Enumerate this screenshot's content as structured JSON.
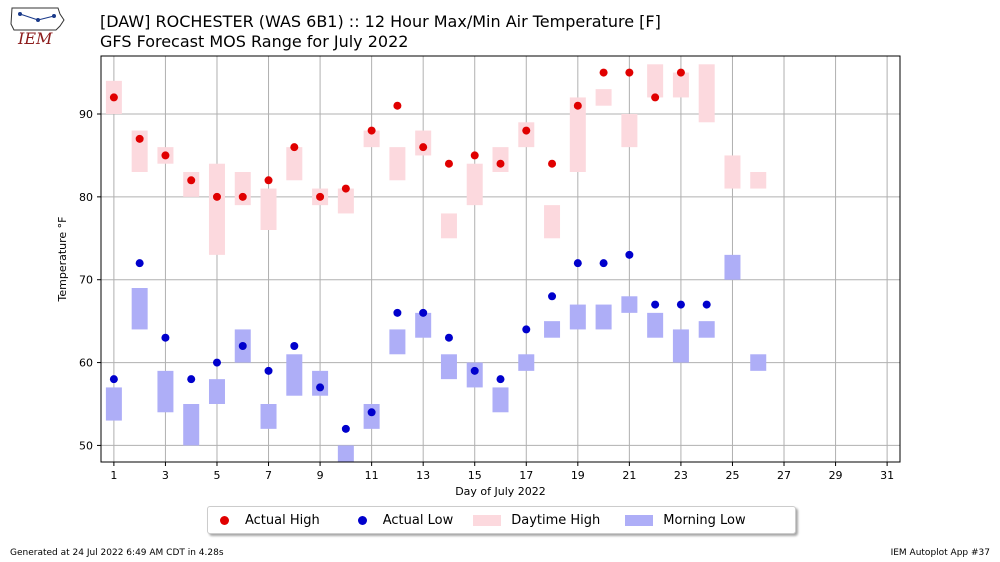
{
  "header": {
    "logo_text": "IEM",
    "title_line1": "[DAW] ROCHESTER (WAS 6B1) :: 12 Hour Max/Min Air Temperature [F]",
    "title_line2": "GFS Forecast MOS Range for July 2022"
  },
  "footer": {
    "generated": "Generated at 24 Jul 2022 6:49 AM CDT in 4.28s",
    "app": "IEM Autoplot App #37"
  },
  "legend": {
    "actual_high": "Actual High",
    "actual_low": "Actual Low",
    "daytime_high": "Daytime High",
    "morning_low": "Morning Low"
  },
  "colors": {
    "actual_high": "#e00000",
    "actual_low": "#0000cc",
    "daytime_high": "#fcd9de",
    "morning_low": "#aeaef7",
    "grid": "#b0b0b0",
    "logo": "#8b1a1a"
  },
  "chart_data": {
    "type": "scatter",
    "xlabel": "Day of July 2022",
    "ylabel": "Temperature °F",
    "xlim": [
      0.5,
      31.5
    ],
    "ylim": [
      48,
      97
    ],
    "xticks": [
      1,
      3,
      5,
      7,
      9,
      11,
      13,
      15,
      17,
      19,
      21,
      23,
      25,
      27,
      29,
      31
    ],
    "yticks": [
      50,
      60,
      70,
      80,
      90
    ],
    "grid": true,
    "legend_position": "bottom-center",
    "series": [
      {
        "name": "Actual High",
        "kind": "points",
        "points": [
          [
            1,
            92
          ],
          [
            2,
            87
          ],
          [
            3,
            85
          ],
          [
            4,
            82
          ],
          [
            5,
            80
          ],
          [
            6,
            80
          ],
          [
            7,
            82
          ],
          [
            8,
            86
          ],
          [
            9,
            80
          ],
          [
            10,
            81
          ],
          [
            11,
            88
          ],
          [
            12,
            91
          ],
          [
            13,
            86
          ],
          [
            14,
            84
          ],
          [
            15,
            85
          ],
          [
            16,
            84
          ],
          [
            17,
            88
          ],
          [
            18,
            84
          ],
          [
            19,
            91
          ],
          [
            20,
            95
          ],
          [
            21,
            95
          ],
          [
            22,
            92
          ],
          [
            23,
            95
          ]
        ]
      },
      {
        "name": "Actual Low",
        "kind": "points",
        "points": [
          [
            1,
            58
          ],
          [
            2,
            72
          ],
          [
            3,
            63
          ],
          [
            4,
            58
          ],
          [
            5,
            60
          ],
          [
            6,
            62
          ],
          [
            7,
            59
          ],
          [
            8,
            62
          ],
          [
            9,
            57
          ],
          [
            10,
            52
          ],
          [
            11,
            54
          ],
          [
            12,
            66
          ],
          [
            13,
            66
          ],
          [
            14,
            63
          ],
          [
            15,
            59
          ],
          [
            16,
            58
          ],
          [
            17,
            64
          ],
          [
            18,
            68
          ],
          [
            19,
            72
          ],
          [
            20,
            72
          ],
          [
            21,
            73
          ],
          [
            22,
            67
          ],
          [
            23,
            67
          ],
          [
            24,
            67
          ]
        ]
      },
      {
        "name": "Daytime High",
        "kind": "ranges",
        "ranges": [
          [
            1,
            90,
            94
          ],
          [
            2,
            83,
            88
          ],
          [
            3,
            84,
            86
          ],
          [
            4,
            80,
            83
          ],
          [
            5,
            73,
            84
          ],
          [
            6,
            79,
            83
          ],
          [
            7,
            76,
            81
          ],
          [
            8,
            82,
            86
          ],
          [
            9,
            79,
            81
          ],
          [
            10,
            78,
            81
          ],
          [
            11,
            86,
            88
          ],
          [
            12,
            82,
            86
          ],
          [
            13,
            85,
            88
          ],
          [
            14,
            75,
            78
          ],
          [
            15,
            79,
            84
          ],
          [
            16,
            83,
            86
          ],
          [
            17,
            86,
            89
          ],
          [
            18,
            75,
            79
          ],
          [
            19,
            83,
            92
          ],
          [
            20,
            91,
            93
          ],
          [
            21,
            86,
            90
          ],
          [
            22,
            92,
            96
          ],
          [
            23,
            92,
            95
          ],
          [
            24,
            89,
            96
          ],
          [
            25,
            81,
            85
          ],
          [
            26,
            81,
            83
          ]
        ]
      },
      {
        "name": "Morning Low",
        "kind": "ranges",
        "ranges": [
          [
            1,
            53,
            57
          ],
          [
            2,
            64,
            69
          ],
          [
            3,
            54,
            59
          ],
          [
            4,
            50,
            55
          ],
          [
            5,
            55,
            58
          ],
          [
            6,
            60,
            64
          ],
          [
            7,
            52,
            55
          ],
          [
            8,
            56,
            61
          ],
          [
            9,
            56,
            59
          ],
          [
            10,
            48,
            50
          ],
          [
            11,
            52,
            55
          ],
          [
            12,
            61,
            64
          ],
          [
            13,
            63,
            66
          ],
          [
            14,
            58,
            61
          ],
          [
            15,
            57,
            60
          ],
          [
            16,
            54,
            57
          ],
          [
            17,
            59,
            61
          ],
          [
            18,
            63,
            65
          ],
          [
            19,
            64,
            67
          ],
          [
            20,
            64,
            67
          ],
          [
            21,
            66,
            68
          ],
          [
            22,
            63,
            66
          ],
          [
            23,
            60,
            64
          ],
          [
            24,
            63,
            65
          ],
          [
            25,
            70,
            73
          ],
          [
            26,
            59,
            61
          ]
        ]
      }
    ]
  }
}
